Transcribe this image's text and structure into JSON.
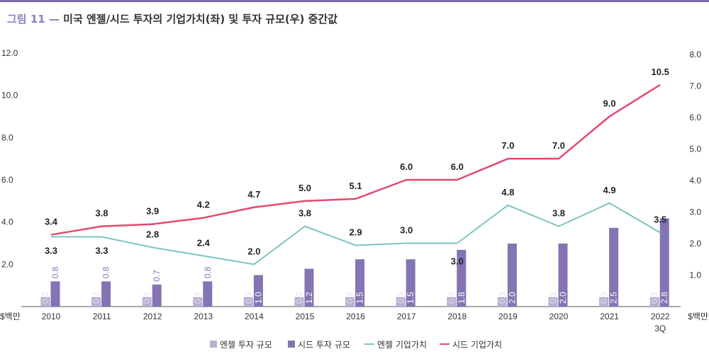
{
  "header": {
    "figure_label": "그림 11 —",
    "title": "미국 엔젤/시드 투자의 기업가치(좌) 및 투자 규모(우) 중간값"
  },
  "chart_data": {
    "type": "bar",
    "categories": [
      "2010",
      "2011",
      "2012",
      "2013",
      "2014",
      "2015",
      "2016",
      "2017",
      "2018",
      "2019",
      "2020",
      "2021",
      "2022 3Q"
    ],
    "series": [
      {
        "name": "엔젤 투자 규모",
        "type": "bar",
        "axis": "right",
        "color": "#b7b0d4",
        "values": [
          0.3,
          0.3,
          0.3,
          0.3,
          0.3,
          0.3,
          0.3,
          0.3,
          0.3,
          0.3,
          0.3,
          0.3,
          0.3
        ],
        "labels": [
          "0.3",
          "0.3",
          "0.3",
          "0.3",
          "0.3",
          "0.3",
          "0.3",
          "0.3",
          "0.3",
          "0.3",
          "0.3",
          "0.3",
          "0.3"
        ]
      },
      {
        "name": "시드 투자 규모",
        "type": "bar",
        "axis": "right",
        "color": "#8474b3",
        "values": [
          0.8,
          0.8,
          0.7,
          0.8,
          1.0,
          1.2,
          1.5,
          1.5,
          1.8,
          2.0,
          2.0,
          2.5,
          2.8
        ],
        "labels": [
          "0.8",
          "0.8",
          "0.7",
          "0.8",
          "1.0",
          "1.2",
          "1.5",
          "1.5",
          "1.8",
          "2.0",
          "2.0",
          "2.5",
          "2.8"
        ]
      },
      {
        "name": "엔젤 기업가치",
        "type": "line",
        "axis": "left",
        "color": "#7cc4c3",
        "values": [
          3.3,
          3.3,
          2.8,
          2.4,
          2.0,
          3.8,
          2.9,
          3.0,
          3.0,
          4.8,
          3.8,
          4.9,
          3.5
        ],
        "labels": [
          "3.3",
          "3.3",
          "2.8",
          "2.4",
          "2.0",
          "3.8",
          "2.9",
          "3.0",
          "3.0",
          "4.8",
          "3.8",
          "4.9",
          "3.5"
        ]
      },
      {
        "name": "시드 기업가치",
        "type": "line",
        "axis": "left",
        "color": "#e5496f",
        "values": [
          3.4,
          3.8,
          3.9,
          4.2,
          4.7,
          5.0,
          5.1,
          6.0,
          6.0,
          7.0,
          7.0,
          9.0,
          10.5
        ],
        "labels": [
          "3.4",
          "3.8",
          "3.9",
          "4.2",
          "4.7",
          "5.0",
          "5.1",
          "6.0",
          "6.0",
          "7.0",
          "7.0",
          "9.0",
          "10.5"
        ]
      }
    ],
    "y_left": {
      "ticks": [
        "2.0",
        "4.0",
        "6.0",
        "8.0",
        "10.0",
        "12.0"
      ],
      "range": [
        0,
        12
      ],
      "unit": "$백만"
    },
    "y_right": {
      "ticks": [
        "1.0",
        "2.0",
        "3.0",
        "4.0",
        "5.0",
        "6.0",
        "7.0",
        "8.0"
      ],
      "range": [
        0,
        8
      ],
      "unit": "$백만"
    },
    "legend_position": "bottom-center",
    "grid": false
  }
}
